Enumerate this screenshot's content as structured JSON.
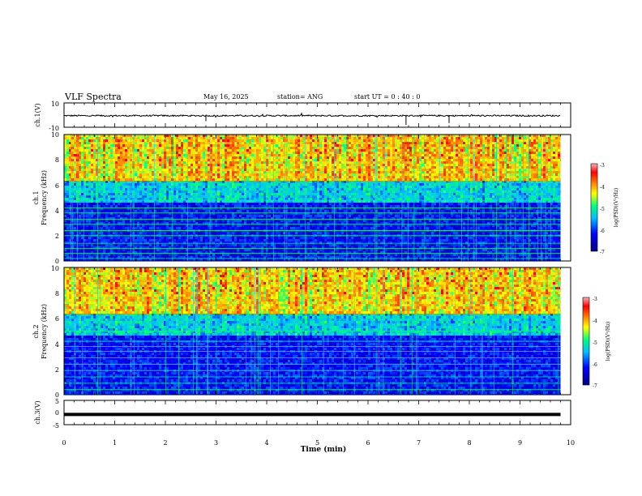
{
  "header": {
    "title": "VLF Spectra",
    "date": "May 16, 2025",
    "station": "station= ANG",
    "start_ut": "start  UT =   0 : 40 : 0"
  },
  "chart_data": [
    {
      "type": "line",
      "panel": "ch1-waveform",
      "ylabel": "ch.1(V)",
      "ylim": [
        -10,
        10
      ],
      "y_ticks": [
        "10",
        "-10"
      ],
      "x_range": [
        0,
        10
      ],
      "series": [
        {
          "x": [
            0,
            9.8
          ],
          "y": [
            -0.5,
            -0.5
          ]
        }
      ]
    },
    {
      "type": "heatmap",
      "panel": "ch1-spectrogram",
      "ylabel_line1": "ch.1",
      "ylabel_line2": "Frequency  (kHz)",
      "ylim": [
        0,
        10
      ],
      "y_ticks": [
        "0",
        "2",
        "4",
        "6",
        "8",
        "10"
      ],
      "x_range": [
        0,
        9.8
      ],
      "colorbar_label": "log(PSD)(V²/Hz)",
      "colorbar_range": [
        -7,
        -3
      ],
      "colorbar_ticks": [
        "-3",
        "-4",
        "-5",
        "-6",
        "-7"
      ],
      "narrowband_lines_khz": [
        0.2,
        0.6,
        1.0,
        1.4,
        2.0,
        2.4,
        2.9,
        3.3,
        3.8,
        4.2,
        4.8
      ]
    },
    {
      "type": "heatmap",
      "panel": "ch2-spectrogram",
      "ylabel_line1": "ch.2",
      "ylabel_line2": "Frequency  (kHz)",
      "ylim": [
        0,
        10
      ],
      "y_ticks": [
        "0",
        "2",
        "4",
        "6",
        "8",
        "10"
      ],
      "x_range": [
        0,
        9.8
      ],
      "colorbar_label": "log(PSD)(V²/Hz)",
      "colorbar_range": [
        -7,
        -3
      ],
      "colorbar_ticks": [
        "-3",
        "-4",
        "-5",
        "-6",
        "-7"
      ],
      "narrowband_lines_khz": [
        0.4,
        0.9,
        1.4,
        1.9,
        2.4,
        2.9,
        3.4,
        3.8,
        4.2,
        5.0
      ]
    },
    {
      "type": "line",
      "panel": "ch3-waveform",
      "ylabel": "ch.3(V)",
      "ylim": [
        -5,
        5
      ],
      "y_ticks": [
        "5",
        "0",
        "-5"
      ],
      "x_range": [
        0,
        10
      ],
      "series": [
        {
          "x": [
            0,
            9.8
          ],
          "y": [
            -0.8,
            -0.8
          ]
        }
      ]
    }
  ],
  "xaxis": {
    "label": "Time  (min)",
    "ticks": [
      "0",
      "1",
      "2",
      "3",
      "4",
      "5",
      "6",
      "7",
      "8",
      "9",
      "10"
    ],
    "range": [
      0,
      10
    ]
  },
  "colors": {
    "background": "#ffffff",
    "axes": "#000000",
    "colormap": [
      "#000080",
      "#0000ff",
      "#00bfff",
      "#00ff80",
      "#ffff00",
      "#ff8000",
      "#ff0000",
      "#ffb0b0"
    ]
  }
}
